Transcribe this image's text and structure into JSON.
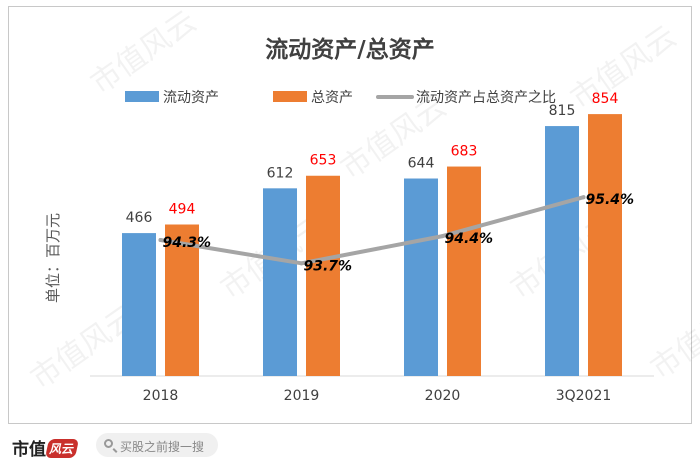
{
  "colors": {
    "current_assets": "#5b9bd5",
    "total_assets": "#ed7d31",
    "ratio_line": "#a5a5a5",
    "total_label": "#ff0000"
  },
  "watermark": "市值风云",
  "footer": {
    "logo_text": "市值",
    "logo_seal": "风云",
    "search_placeholder": "买股之前搜一搜"
  },
  "chart_data": {
    "type": "bar",
    "title": "流动资产/总资产",
    "ylabel": "单位：百万元",
    "xlabel": "",
    "categories": [
      "2018",
      "2019",
      "2020",
      "3Q2021"
    ],
    "ylim": [
      0,
      900
    ],
    "series": [
      {
        "name": "流动资产",
        "values": [
          466,
          612,
          644,
          815
        ]
      },
      {
        "name": "总资产",
        "values": [
          494,
          653,
          683,
          854
        ]
      },
      {
        "name": "流动资产占总资产之比",
        "kind": "line",
        "values": [
          94.3,
          93.7,
          94.4,
          95.4
        ],
        "labels": [
          "94.3%",
          "93.7%",
          "94.4%",
          "95.4%"
        ]
      }
    ]
  }
}
